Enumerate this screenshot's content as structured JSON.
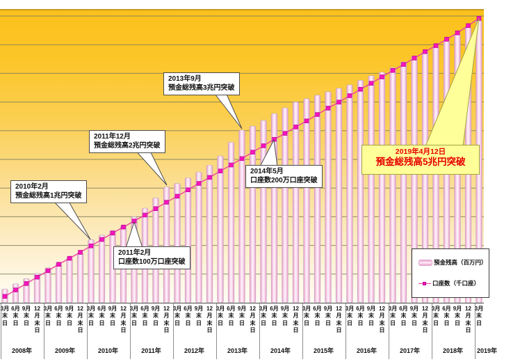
{
  "chart_data": {
    "type": "bar",
    "title": "",
    "x": {
      "num_points": 45,
      "start_year": 2008,
      "quarter_label_lines": [
        [
          "3月",
          "末",
          "日"
        ],
        [
          "6月",
          "末",
          "日"
        ],
        [
          "9月",
          "末",
          "日"
        ],
        [
          "12",
          "月",
          "末",
          "日"
        ]
      ],
      "years": [
        "2008年",
        "2009年",
        "2010年",
        "2011年",
        "2012年",
        "2013年",
        "2014年",
        "2015年",
        "2016年",
        "2017年",
        "2018年",
        "2019年"
      ]
    },
    "series": [
      {
        "name": "預金残高（百万円）",
        "type": "bar",
        "unit": "百万円",
        "values": [
          240000,
          330000,
          420000,
          510000,
          610000,
          700000,
          790000,
          870000,
          1100000,
          1180000,
          1260000,
          1340000,
          1500000,
          1650000,
          1830000,
          2020000,
          2080000,
          2180000,
          2280000,
          2400000,
          2560000,
          2800000,
          3010000,
          3080000,
          3180000,
          3300000,
          3400000,
          3500000,
          3560000,
          3620000,
          3680000,
          3740000,
          3800000,
          3880000,
          3960000,
          4020000,
          4100000,
          4200000,
          4300000,
          4380000,
          4480000,
          4580000,
          4700000,
          4800000,
          4920000
        ]
      },
      {
        "name": "口座数（千口座）",
        "type": "line",
        "unit": "千口座",
        "values": [
          80,
          160,
          240,
          320,
          400,
          480,
          555,
          630,
          710,
          790,
          870,
          945,
          1020,
          1095,
          1175,
          1255,
          1330,
          1410,
          1490,
          1565,
          1645,
          1720,
          1800,
          1880,
          1960,
          2040,
          2115,
          2195,
          2270,
          2350,
          2430,
          2505,
          2585,
          2665,
          2740,
          2820,
          2900,
          2975,
          3055,
          3135,
          3210,
          3290,
          3370,
          3460,
          3550
        ]
      }
    ],
    "left_axis": {
      "min": 0,
      "max": 5000000,
      "gridline_step": 500000
    },
    "right_axis": {
      "min": 0,
      "max": 3580
    },
    "grid": "horizontal",
    "legend_position": "bottom-right"
  },
  "annotations": {
    "c1": {
      "line1": "2010年2月",
      "line2": "預金総残高1兆円突破"
    },
    "c2": {
      "line1": "2011年2月",
      "line2": "口座数100万口座突破"
    },
    "c3": {
      "line1": "2011年12月",
      "line2": "預金総残高2兆円突破"
    },
    "c4": {
      "line1": "2013年9月",
      "line2": "預金総残高3兆円突破"
    },
    "c5": {
      "line1": "2014年5月",
      "line2": "口座数200万口座突破"
    },
    "c6": {
      "line1": "2019年4月12日",
      "line2": "預金総残高5兆円突破"
    }
  },
  "legend": {
    "deposits": "預金残高（百万円）",
    "accounts": "口座数（千口座）"
  },
  "colors": {
    "bar_edge": "#ea96c8",
    "bar_center": "#fdf4fa",
    "bar_stroke": "#b9a8b4",
    "line": "#ef3fa4",
    "marker": "#fb14bd",
    "marker_stroke": "#b5078d",
    "gridline": "#83805c",
    "gradient_top": "#fbc11c",
    "gradient_bottom": "#fffdf6",
    "highlight_bg": "#ffff99",
    "highlight_text": "#e60000"
  }
}
